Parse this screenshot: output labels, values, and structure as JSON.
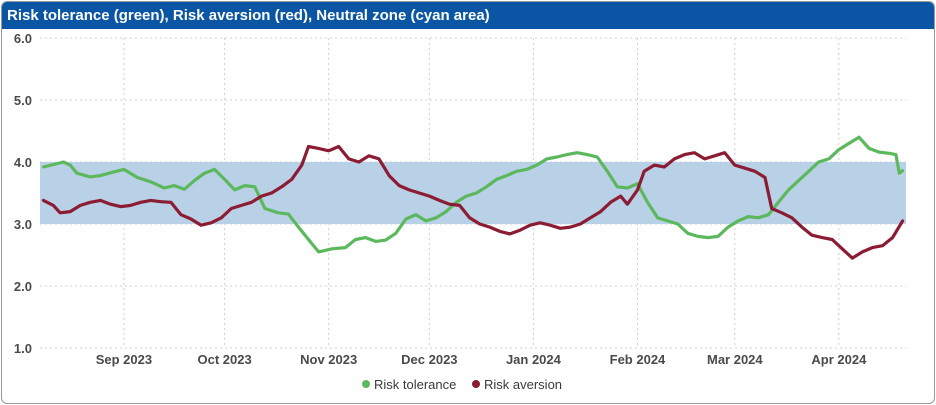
{
  "header": {
    "title": "Risk tolerance (green), Risk aversion (red), Neutral zone (cyan area)"
  },
  "chart_data": {
    "type": "line",
    "title": "Risk tolerance (green), Risk aversion (red), Neutral zone (cyan area)",
    "x_type": "date",
    "xlim": [
      "2023-08-07",
      "2024-04-21"
    ],
    "ylim": [
      1.0,
      6.0
    ],
    "y_ticks": [
      "1.0",
      "2.0",
      "3.0",
      "4.0",
      "5.0",
      "6.0"
    ],
    "x_ticks": [
      {
        "date": "2023-09-01",
        "label": "Sep 2023"
      },
      {
        "date": "2023-10-01",
        "label": "Oct 2023"
      },
      {
        "date": "2023-11-01",
        "label": "Nov 2023"
      },
      {
        "date": "2023-12-01",
        "label": "Dec 2023"
      },
      {
        "date": "2024-01-01",
        "label": "Jan 2024"
      },
      {
        "date": "2024-02-01",
        "label": "Feb 2024"
      },
      {
        "date": "2024-03-01",
        "label": "Mar 2024"
      },
      {
        "date": "2024-04-01",
        "label": "Apr 2024"
      }
    ],
    "grid": true,
    "neutral_zone": {
      "y_low": 3.0,
      "y_high": 4.0,
      "color": "#b9d1e6"
    },
    "legend_position": "bottom-center",
    "series": [
      {
        "name": "Risk tolerance",
        "color": "#5cb85c",
        "points": [
          [
            "2023-08-08",
            3.92
          ],
          [
            "2023-08-11",
            3.96
          ],
          [
            "2023-08-14",
            4.0
          ],
          [
            "2023-08-16",
            3.95
          ],
          [
            "2023-08-18",
            3.82
          ],
          [
            "2023-08-22",
            3.76
          ],
          [
            "2023-08-25",
            3.78
          ],
          [
            "2023-08-29",
            3.84
          ],
          [
            "2023-09-01",
            3.88
          ],
          [
            "2023-09-05",
            3.75
          ],
          [
            "2023-09-09",
            3.68
          ],
          [
            "2023-09-13",
            3.58
          ],
          [
            "2023-09-16",
            3.62
          ],
          [
            "2023-09-19",
            3.56
          ],
          [
            "2023-09-22",
            3.7
          ],
          [
            "2023-09-25",
            3.82
          ],
          [
            "2023-09-28",
            3.88
          ],
          [
            "2023-10-01",
            3.72
          ],
          [
            "2023-10-04",
            3.55
          ],
          [
            "2023-10-07",
            3.62
          ],
          [
            "2023-10-10",
            3.6
          ],
          [
            "2023-10-13",
            3.25
          ],
          [
            "2023-10-17",
            3.18
          ],
          [
            "2023-10-20",
            3.16
          ],
          [
            "2023-10-23",
            2.95
          ],
          [
            "2023-10-26",
            2.75
          ],
          [
            "2023-10-29",
            2.55
          ],
          [
            "2023-11-02",
            2.6
          ],
          [
            "2023-11-06",
            2.62
          ],
          [
            "2023-11-09",
            2.75
          ],
          [
            "2023-11-12",
            2.78
          ],
          [
            "2023-11-15",
            2.72
          ],
          [
            "2023-11-18",
            2.74
          ],
          [
            "2023-11-21",
            2.85
          ],
          [
            "2023-11-24",
            3.08
          ],
          [
            "2023-11-27",
            3.15
          ],
          [
            "2023-11-30",
            3.05
          ],
          [
            "2023-12-03",
            3.1
          ],
          [
            "2023-12-06",
            3.2
          ],
          [
            "2023-12-09",
            3.35
          ],
          [
            "2023-12-12",
            3.45
          ],
          [
            "2023-12-15",
            3.5
          ],
          [
            "2023-12-18",
            3.6
          ],
          [
            "2023-12-21",
            3.72
          ],
          [
            "2023-12-24",
            3.78
          ],
          [
            "2023-12-27",
            3.85
          ],
          [
            "2023-12-30",
            3.88
          ],
          [
            "2024-01-02",
            3.95
          ],
          [
            "2024-01-05",
            4.05
          ],
          [
            "2024-01-08",
            4.08
          ],
          [
            "2024-01-11",
            4.12
          ],
          [
            "2024-01-14",
            4.15
          ],
          [
            "2024-01-17",
            4.12
          ],
          [
            "2024-01-20",
            4.08
          ],
          [
            "2024-01-23",
            3.85
          ],
          [
            "2024-01-26",
            3.6
          ],
          [
            "2024-01-29",
            3.58
          ],
          [
            "2024-02-01",
            3.65
          ],
          [
            "2024-02-04",
            3.35
          ],
          [
            "2024-02-07",
            3.1
          ],
          [
            "2024-02-10",
            3.05
          ],
          [
            "2024-02-13",
            3.0
          ],
          [
            "2024-02-16",
            2.85
          ],
          [
            "2024-02-19",
            2.8
          ],
          [
            "2024-02-22",
            2.78
          ],
          [
            "2024-02-25",
            2.8
          ],
          [
            "2024-02-28",
            2.95
          ],
          [
            "2024-03-02",
            3.05
          ],
          [
            "2024-03-05",
            3.12
          ],
          [
            "2024-03-08",
            3.1
          ],
          [
            "2024-03-11",
            3.15
          ],
          [
            "2024-03-14",
            3.35
          ],
          [
            "2024-03-17",
            3.55
          ],
          [
            "2024-03-20",
            3.7
          ],
          [
            "2024-03-23",
            3.85
          ],
          [
            "2024-03-26",
            4.0
          ],
          [
            "2024-03-29",
            4.05
          ],
          [
            "2024-04-01",
            4.2
          ],
          [
            "2024-04-04",
            4.3
          ],
          [
            "2024-04-07",
            4.4
          ],
          [
            "2024-04-10",
            4.22
          ],
          [
            "2024-04-13",
            4.16
          ],
          [
            "2024-04-16",
            4.14
          ],
          [
            "2024-04-18",
            4.12
          ],
          [
            "2024-04-19",
            3.82
          ],
          [
            "2024-04-20",
            3.86
          ]
        ]
      },
      {
        "name": "Risk aversion",
        "color": "#8b1c34",
        "points": [
          [
            "2023-08-08",
            3.38
          ],
          [
            "2023-08-11",
            3.3
          ],
          [
            "2023-08-13",
            3.18
          ],
          [
            "2023-08-16",
            3.2
          ],
          [
            "2023-08-19",
            3.3
          ],
          [
            "2023-08-22",
            3.35
          ],
          [
            "2023-08-25",
            3.38
          ],
          [
            "2023-08-28",
            3.32
          ],
          [
            "2023-08-31",
            3.28
          ],
          [
            "2023-09-03",
            3.3
          ],
          [
            "2023-09-06",
            3.35
          ],
          [
            "2023-09-09",
            3.38
          ],
          [
            "2023-09-12",
            3.36
          ],
          [
            "2023-09-15",
            3.35
          ],
          [
            "2023-09-18",
            3.15
          ],
          [
            "2023-09-21",
            3.08
          ],
          [
            "2023-09-24",
            2.98
          ],
          [
            "2023-09-27",
            3.02
          ],
          [
            "2023-09-30",
            3.1
          ],
          [
            "2023-10-03",
            3.25
          ],
          [
            "2023-10-06",
            3.3
          ],
          [
            "2023-10-09",
            3.35
          ],
          [
            "2023-10-12",
            3.45
          ],
          [
            "2023-10-15",
            3.5
          ],
          [
            "2023-10-18",
            3.6
          ],
          [
            "2023-10-21",
            3.72
          ],
          [
            "2023-10-24",
            3.95
          ],
          [
            "2023-10-26",
            4.25
          ],
          [
            "2023-10-29",
            4.22
          ],
          [
            "2023-11-01",
            4.18
          ],
          [
            "2023-11-04",
            4.25
          ],
          [
            "2023-11-07",
            4.05
          ],
          [
            "2023-11-10",
            4.0
          ],
          [
            "2023-11-13",
            4.1
          ],
          [
            "2023-11-16",
            4.05
          ],
          [
            "2023-11-19",
            3.78
          ],
          [
            "2023-11-22",
            3.62
          ],
          [
            "2023-11-25",
            3.55
          ],
          [
            "2023-11-28",
            3.5
          ],
          [
            "2023-12-01",
            3.45
          ],
          [
            "2023-12-04",
            3.38
          ],
          [
            "2023-12-07",
            3.32
          ],
          [
            "2023-12-10",
            3.3
          ],
          [
            "2023-12-13",
            3.1
          ],
          [
            "2023-12-16",
            3.0
          ],
          [
            "2023-12-19",
            2.95
          ],
          [
            "2023-12-22",
            2.88
          ],
          [
            "2023-12-25",
            2.84
          ],
          [
            "2023-12-28",
            2.9
          ],
          [
            "2023-12-31",
            2.98
          ],
          [
            "2024-01-03",
            3.02
          ],
          [
            "2024-01-06",
            2.98
          ],
          [
            "2024-01-09",
            2.93
          ],
          [
            "2024-01-12",
            2.95
          ],
          [
            "2024-01-15",
            3.0
          ],
          [
            "2024-01-18",
            3.1
          ],
          [
            "2024-01-21",
            3.2
          ],
          [
            "2024-01-24",
            3.35
          ],
          [
            "2024-01-27",
            3.45
          ],
          [
            "2024-01-29",
            3.32
          ],
          [
            "2024-02-01",
            3.55
          ],
          [
            "2024-02-03",
            3.85
          ],
          [
            "2024-02-06",
            3.95
          ],
          [
            "2024-02-09",
            3.92
          ],
          [
            "2024-02-12",
            4.05
          ],
          [
            "2024-02-15",
            4.12
          ],
          [
            "2024-02-18",
            4.15
          ],
          [
            "2024-02-21",
            4.05
          ],
          [
            "2024-02-24",
            4.1
          ],
          [
            "2024-02-27",
            4.15
          ],
          [
            "2024-03-01",
            3.95
          ],
          [
            "2024-03-04",
            3.9
          ],
          [
            "2024-03-07",
            3.85
          ],
          [
            "2024-03-10",
            3.75
          ],
          [
            "2024-03-12",
            3.25
          ],
          [
            "2024-03-15",
            3.18
          ],
          [
            "2024-03-18",
            3.1
          ],
          [
            "2024-03-21",
            2.95
          ],
          [
            "2024-03-24",
            2.82
          ],
          [
            "2024-03-27",
            2.78
          ],
          [
            "2024-03-30",
            2.75
          ],
          [
            "2024-04-02",
            2.6
          ],
          [
            "2024-04-05",
            2.45
          ],
          [
            "2024-04-08",
            2.55
          ],
          [
            "2024-04-11",
            2.62
          ],
          [
            "2024-04-14",
            2.65
          ],
          [
            "2024-04-17",
            2.78
          ],
          [
            "2024-04-20",
            3.05
          ]
        ]
      }
    ]
  }
}
